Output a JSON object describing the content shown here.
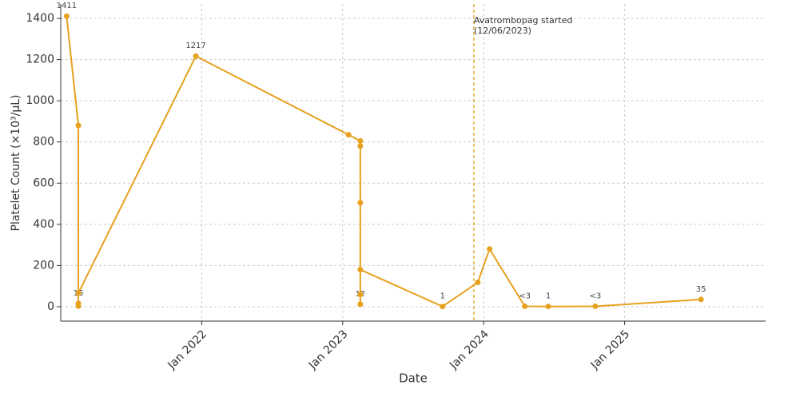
{
  "chart_data": {
    "type": "line",
    "x_label": "Date",
    "y_label": "Platelet Count (×10³/µL)",
    "x": [
      "2021-01",
      "2021-02",
      "2021-02",
      "2021-02",
      "2021-02",
      "2021-12",
      "2023-01",
      "2023-02",
      "2023-02",
      "2023-02",
      "2023-02",
      "2023-02",
      "2023-02",
      "2023-09",
      "2023-12",
      "2024-01",
      "2024-04",
      "2024-06",
      "2024-10",
      "2025-07"
    ],
    "series": [
      {
        "name": "Platelet count",
        "color": "#e6a11f",
        "values": [
          1411,
          880,
          16,
          3,
          66,
          1217,
          835,
          805,
          780,
          505,
          12,
          60,
          180,
          1,
          118,
          280,
          2,
          1,
          2,
          35
        ],
        "value_labels": [
          "1411",
          null,
          "16",
          null,
          null,
          "1217",
          null,
          null,
          null,
          null,
          "12",
          null,
          null,
          "1",
          null,
          null,
          "<3",
          "1",
          "<3",
          "35"
        ]
      }
    ],
    "xlim": [
      "2021-01",
      "2026-01"
    ],
    "xticks": [
      {
        "value": "2022-01",
        "label": "Jan 2022"
      },
      {
        "value": "2023-01",
        "label": "Jan 2023"
      },
      {
        "value": "2024-01",
        "label": "Jan 2024"
      },
      {
        "value": "2025-01",
        "label": "Jan 2025"
      }
    ],
    "ylim": [
      -70,
      1470
    ],
    "yticks": [
      0,
      200,
      400,
      600,
      800,
      1000,
      1200,
      1400
    ],
    "grid": true,
    "annotations": [
      {
        "x": "2023-12-06",
        "text": "Avatrombopag started",
        "subtext": "(12/06/2023)",
        "color": "#e6a11f"
      }
    ]
  }
}
